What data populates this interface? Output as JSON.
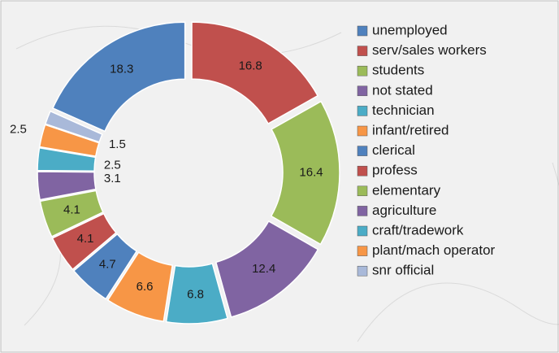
{
  "chart_data": {
    "type": "doughnut",
    "categories": [
      "unemployed",
      "serv/sales workers",
      "students",
      "not stated",
      "technician",
      "infant/retired",
      "clerical",
      "profess",
      "elementary",
      "agriculture",
      "craft/tradework",
      "plant/mach operator",
      "snr official"
    ],
    "values": [
      18.3,
      16.8,
      16.4,
      12.4,
      6.8,
      6.6,
      4.7,
      4.1,
      4.1,
      3.1,
      2.5,
      2.5,
      1.5
    ],
    "colors": [
      "#4f81bd",
      "#c0504d",
      "#9bbb59",
      "#8064a2",
      "#4bacc6",
      "#f79646",
      "#4f81bd",
      "#c0504d",
      "#9bbb59",
      "#8064a2",
      "#4bacc6",
      "#f79646",
      "#a9b9d9"
    ],
    "legend": "right"
  }
}
